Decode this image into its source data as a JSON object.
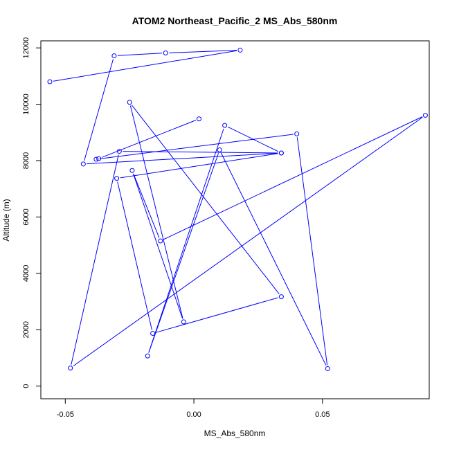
{
  "chart_data": {
    "type": "line",
    "title": "ATOM2 Northeast_Pacific_2 MS_Abs_580nm",
    "xlabel": "MS_Abs_580nm",
    "ylabel": "Altitude (m)",
    "xlim": [
      -0.0595,
      0.0915
    ],
    "ylim": [
      -450,
      12250
    ],
    "x_ticks": [
      -0.05,
      0.0,
      0.05
    ],
    "x_tick_labels": [
      "-0.05",
      "0.00",
      "0.05"
    ],
    "y_ticks": [
      0,
      2000,
      4000,
      6000,
      8000,
      10000,
      12000
    ],
    "y_tick_labels": [
      "0",
      "2000",
      "4000",
      "6000",
      "8000",
      "10000",
      "12000"
    ],
    "grid": false,
    "series": [
      {
        "color": "#0000ff",
        "marker": "open-circle",
        "points": [
          {
            "x": 0.002,
            "y": 9480
          },
          {
            "x": -0.037,
            "y": 8070
          },
          {
            "x": -0.038,
            "y": 8050
          },
          {
            "x": 0.04,
            "y": 8950
          },
          {
            "x": 0.052,
            "y": 620
          },
          {
            "x": 0.01,
            "y": 8380
          },
          {
            "x": -0.018,
            "y": 1070
          },
          {
            "x": 0.012,
            "y": 9250
          },
          {
            "x": 0.034,
            "y": 8270
          },
          {
            "x": -0.029,
            "y": 8330
          },
          {
            "x": -0.048,
            "y": 640
          },
          {
            "x": 0.09,
            "y": 9610
          },
          {
            "x": -0.013,
            "y": 5150
          },
          {
            "x": -0.024,
            "y": 7650
          },
          {
            "x": -0.004,
            "y": 2280
          },
          {
            "x": -0.025,
            "y": 10070
          },
          {
            "x": 0.034,
            "y": 3170
          },
          {
            "x": -0.016,
            "y": 1870
          },
          {
            "x": -0.03,
            "y": 7370
          },
          {
            "x": 0.034,
            "y": 8270
          },
          {
            "x": -0.043,
            "y": 7880
          },
          {
            "x": -0.031,
            "y": 11720
          },
          {
            "x": -0.011,
            "y": 11820
          },
          {
            "x": 0.018,
            "y": 11920
          },
          {
            "x": -0.056,
            "y": 10800
          }
        ]
      }
    ]
  }
}
